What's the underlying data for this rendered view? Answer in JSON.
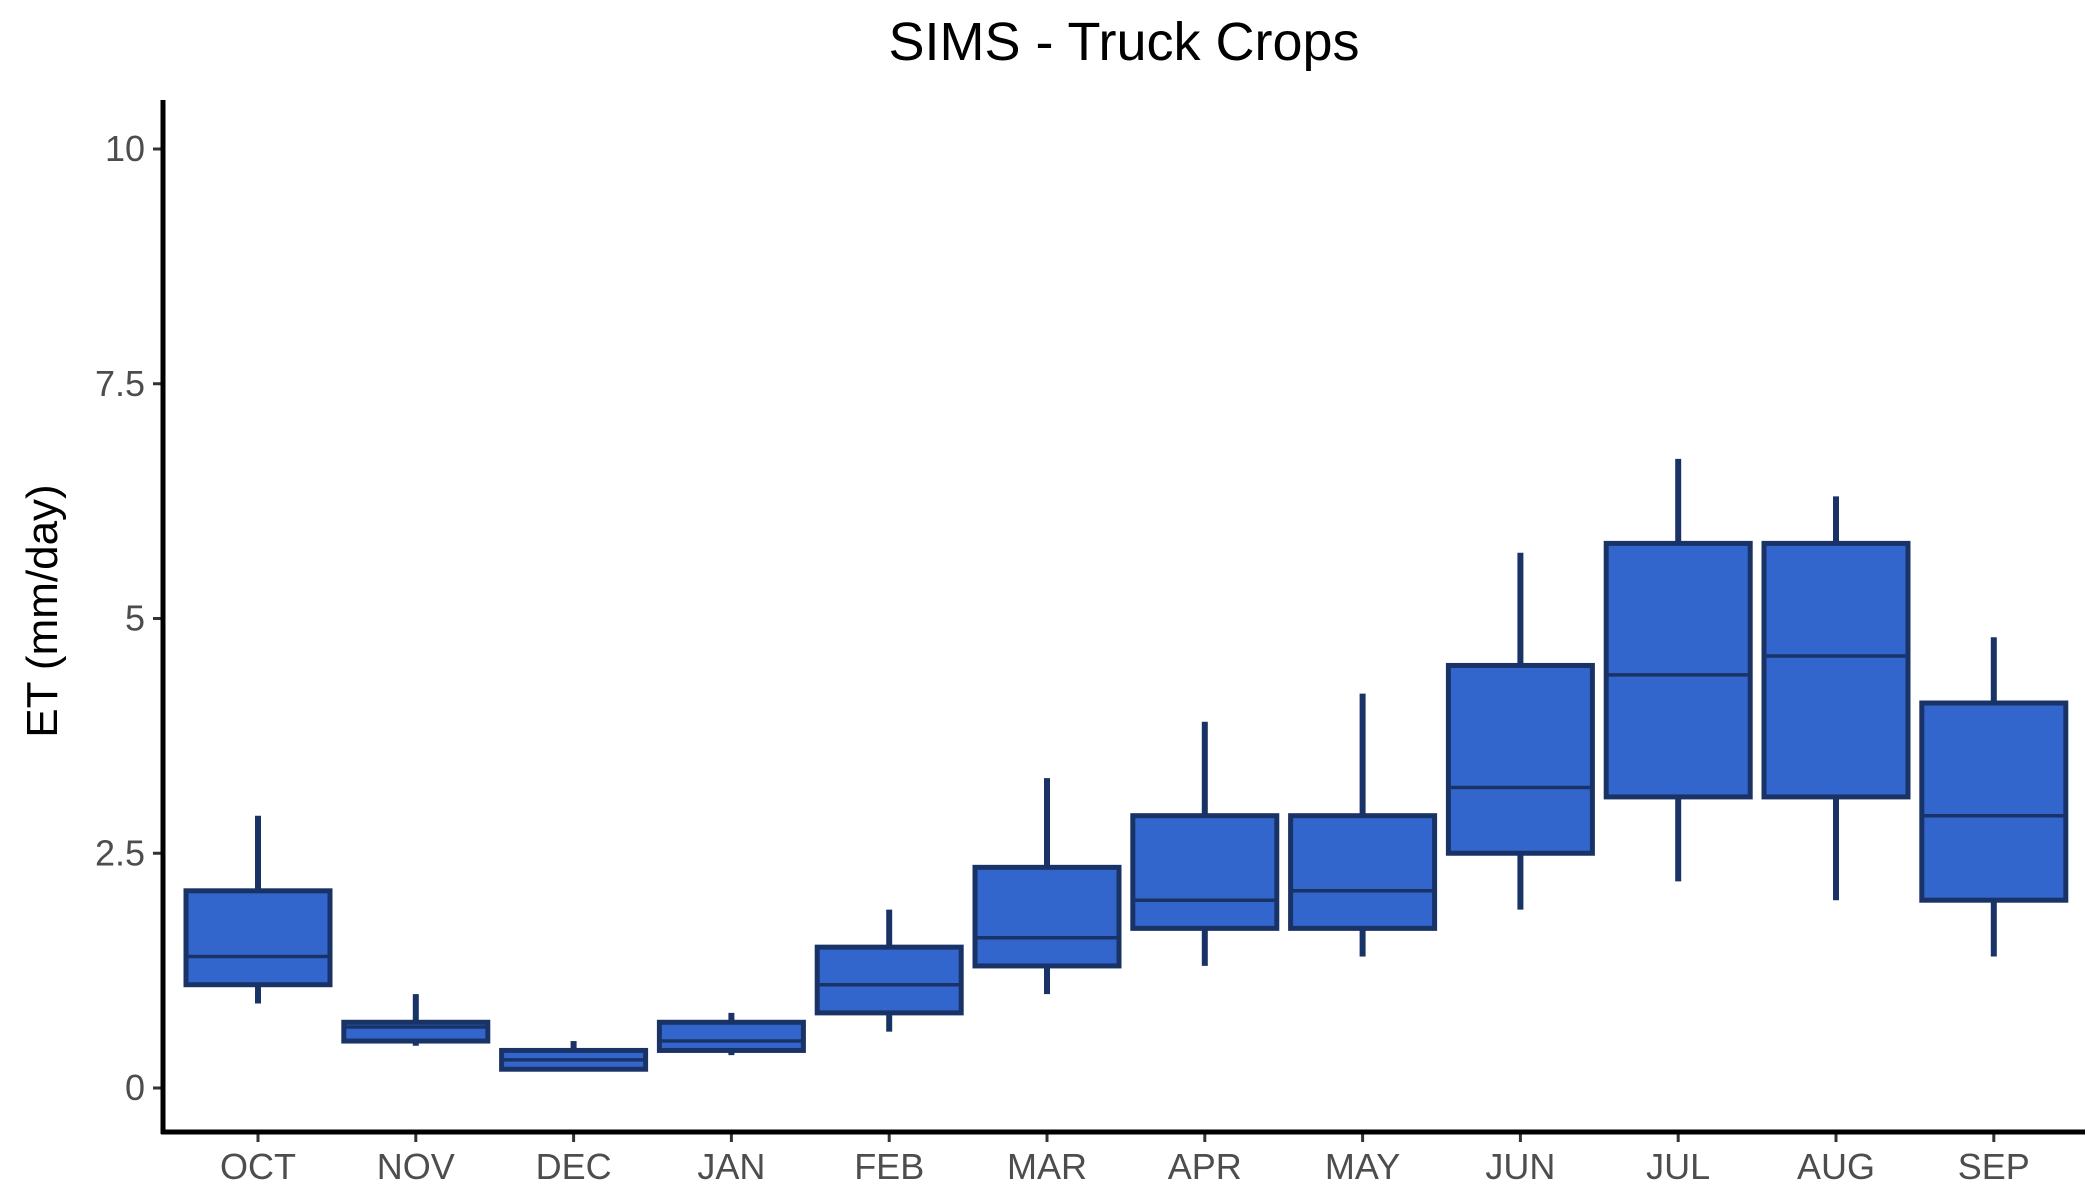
{
  "chart_data": {
    "type": "box",
    "title": "SIMS - Truck Crops",
    "xlabel": "",
    "ylabel": "ET (mm/day)",
    "ylim": [
      -0.5,
      10.5
    ],
    "yticks": [
      0,
      2.5,
      5,
      7.5,
      10
    ],
    "ytick_labels": [
      "0",
      "2.5",
      "5",
      "7.5",
      "10"
    ],
    "grid": false,
    "legend": "none",
    "colors": {
      "box_fill": "#3366cc",
      "box_stroke": "#1a3366",
      "axis": "#000000"
    },
    "categories": [
      "OCT",
      "NOV",
      "DEC",
      "JAN",
      "FEB",
      "MAR",
      "APR",
      "MAY",
      "JUN",
      "JUL",
      "AUG",
      "SEP"
    ],
    "boxes": [
      {
        "label": "OCT",
        "min": 0.9,
        "q1": 1.1,
        "median": 1.4,
        "q3": 2.1,
        "max": 2.9
      },
      {
        "label": "NOV",
        "min": 0.45,
        "q1": 0.5,
        "median": 0.65,
        "q3": 0.7,
        "max": 1.0
      },
      {
        "label": "DEC",
        "min": 0.2,
        "q1": 0.2,
        "median": 0.3,
        "q3": 0.4,
        "max": 0.5
      },
      {
        "label": "JAN",
        "min": 0.35,
        "q1": 0.4,
        "median": 0.5,
        "q3": 0.7,
        "max": 0.8
      },
      {
        "label": "FEB",
        "min": 0.6,
        "q1": 0.8,
        "median": 1.1,
        "q3": 1.5,
        "max": 1.9
      },
      {
        "label": "MAR",
        "min": 1.0,
        "q1": 1.3,
        "median": 1.6,
        "q3": 2.35,
        "max": 3.3
      },
      {
        "label": "APR",
        "min": 1.3,
        "q1": 1.7,
        "median": 2.0,
        "q3": 2.9,
        "max": 3.9
      },
      {
        "label": "MAY",
        "min": 1.4,
        "q1": 1.7,
        "median": 2.1,
        "q3": 2.9,
        "max": 4.2
      },
      {
        "label": "JUN",
        "min": 1.9,
        "q1": 2.5,
        "median": 3.2,
        "q3": 4.5,
        "max": 5.7
      },
      {
        "label": "JUL",
        "min": 2.2,
        "q1": 3.1,
        "median": 4.4,
        "q3": 5.8,
        "max": 6.7
      },
      {
        "label": "AUG",
        "min": 2.0,
        "q1": 3.1,
        "median": 4.6,
        "q3": 5.8,
        "max": 6.3
      },
      {
        "label": "SEP",
        "min": 1.4,
        "q1": 2.0,
        "median": 2.9,
        "q3": 4.1,
        "max": 4.8
      }
    ]
  }
}
